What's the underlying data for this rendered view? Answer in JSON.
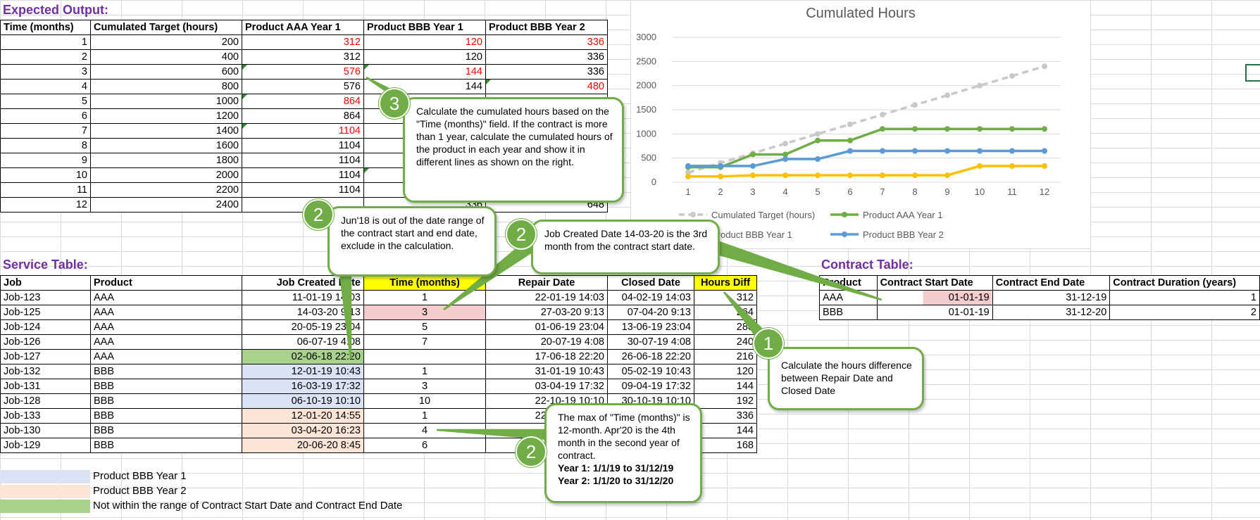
{
  "expected_output": {
    "title": "Expected Output:",
    "headers": [
      "Time (months)",
      "Cumulated Target (hours)",
      "Product AAA Year 1",
      "Product BBB Year 1",
      "Product BBB Year 2"
    ],
    "rows": [
      [
        "1",
        "200",
        "312",
        "120",
        "336"
      ],
      [
        "2",
        "400",
        "312",
        "120",
        "336"
      ],
      [
        "3",
        "600",
        "576",
        "144",
        "336"
      ],
      [
        "4",
        "800",
        "576",
        "144",
        "480"
      ],
      [
        "5",
        "1000",
        "864",
        "",
        ""
      ],
      [
        "6",
        "1200",
        "864",
        "",
        ""
      ],
      [
        "7",
        "1400",
        "1104",
        "",
        ""
      ],
      [
        "8",
        "1600",
        "1104",
        "",
        ""
      ],
      [
        "9",
        "1800",
        "1104",
        "",
        ""
      ],
      [
        "10",
        "2000",
        "1104",
        "",
        ""
      ],
      [
        "11",
        "2200",
        "1104",
        "",
        ""
      ],
      [
        "12",
        "2400",
        "",
        "336",
        "648"
      ]
    ]
  },
  "chart_data": {
    "type": "line",
    "title": "Cumulated Hours",
    "categories": [
      "1",
      "2",
      "3",
      "4",
      "5",
      "6",
      "7",
      "8",
      "9",
      "10",
      "11",
      "12"
    ],
    "ylim": [
      0,
      3000
    ],
    "yticks": [
      "0",
      "500",
      "1000",
      "1500",
      "2000",
      "2500",
      "3000"
    ],
    "grid": true,
    "legend_position": "bottom",
    "series": [
      {
        "name": "Cumulated Target (hours)",
        "color": "#c9c9c9",
        "dashed": true,
        "values": [
          200,
          400,
          600,
          800,
          1000,
          1200,
          1400,
          1600,
          1800,
          2000,
          2200,
          2400
        ]
      },
      {
        "name": "Product AAA Year 1",
        "color": "#70ad47",
        "dashed": false,
        "values": [
          312,
          312,
          576,
          576,
          864,
          864,
          1104,
          1104,
          1104,
          1104,
          1104,
          1104
        ]
      },
      {
        "name": "Product BBB Year 1",
        "color": "#ffc000",
        "dashed": false,
        "values": [
          120,
          120,
          144,
          144,
          144,
          144,
          144,
          144,
          144,
          336,
          336,
          336
        ]
      },
      {
        "name": "Product BBB Year 2",
        "color": "#5b9bd5",
        "dashed": false,
        "values": [
          336,
          336,
          336,
          480,
          480,
          648,
          648,
          648,
          648,
          648,
          648,
          648
        ]
      }
    ]
  },
  "service_table": {
    "title": "Service Table:",
    "headers": [
      "Job",
      "Product",
      "Job Created Date",
      "Time (months)",
      "Repair Date",
      "Closed Date",
      "Hours Diff"
    ],
    "rows": [
      [
        "Job-123",
        "AAA",
        "11-01-19 14:03",
        "1",
        "22-01-19 14:03",
        "04-02-19 14:03",
        "312"
      ],
      [
        "Job-125",
        "AAA",
        "14-03-20 9:13",
        "3",
        "27-03-20 9:13",
        "07-04-20 9:13",
        "264"
      ],
      [
        "Job-124",
        "AAA",
        "20-05-19 23:04",
        "5",
        "01-06-19 23:04",
        "13-06-19 23:04",
        "288"
      ],
      [
        "Job-126",
        "AAA",
        "06-07-19 4:08",
        "7",
        "20-07-19 4:08",
        "30-07-19 4:08",
        "240"
      ],
      [
        "Job-127",
        "AAA",
        "02-06-18 22:20",
        "",
        "17-06-18 22:20",
        "26-06-18 22:20",
        "216"
      ],
      [
        "Job-132",
        "BBB",
        "12-01-19 10:43",
        "1",
        "31-01-19 10:43",
        "05-02-19 10:43",
        "120"
      ],
      [
        "Job-131",
        "BBB",
        "16-03-19 17:32",
        "3",
        "03-04-19 17:32",
        "09-04-19 17:32",
        "144"
      ],
      [
        "Job-128",
        "BBB",
        "06-10-19 10:10",
        "10",
        "22-10-19 10:10",
        "30-10-19 10:10",
        "192"
      ],
      [
        "Job-133",
        "BBB",
        "12-01-20 14:55",
        "1",
        "22-01-20 14:55",
        "",
        "336"
      ],
      [
        "Job-130",
        "BBB",
        "03-04-20 16:23",
        "4",
        "",
        "",
        "144"
      ],
      [
        "Job-129",
        "BBB",
        "20-06-20 8:45",
        "6",
        "",
        "",
        "168"
      ]
    ]
  },
  "contract_table": {
    "title": "Contract Table:",
    "headers": [
      "Product",
      "Contract Start Date",
      "Contract End Date",
      "Contract Duration (years)"
    ],
    "rows": [
      [
        "AAA",
        "01-01-19",
        "31-12-19",
        "1"
      ],
      [
        "BBB",
        "01-01-19",
        "31-12-20",
        "2"
      ]
    ]
  },
  "legend_rows": [
    "Product BBB Year 1",
    "Product BBB Year 2",
    "Not within the range of Contract Start Date and Contract End Date"
  ],
  "callouts": {
    "c3": {
      "number": "3",
      "text": "Calculate the cumulated hours based on the \"Time (months)\" field. If the contract is more than 1 year, calculate the cumulated hours of the product in each year and show it in different lines as shown on the right."
    },
    "c2a": {
      "number": "2",
      "text": "Jun'18 is out of the date range of the contract start and end date, exclude in the calculation."
    },
    "c2b": {
      "number": "2",
      "text": "Job Created Date 14-03-20 is the 3rd month from the contract start date."
    },
    "c1": {
      "number": "1",
      "text": "Calculate the hours difference between Repair Date and Closed Date"
    },
    "c2c": {
      "number": "2",
      "text": "The max of \"Time (months)\" is 12-month. Apr'20 is the 4th month in the second year of contract.",
      "year1": "Year 1: 1/1/19 to 31/12/19",
      "year2": "Year 2: 1/1/20 to 31/12/20"
    }
  },
  "colors": {
    "accent_green": "#70ad47",
    "title_purple": "#7030a0",
    "highlight_yellow": "#ffff00",
    "bbb_year1_fill": "#dae3f3",
    "bbb_year2_fill": "#fbe5d6",
    "out_of_range_fill": "#a9d18e"
  }
}
